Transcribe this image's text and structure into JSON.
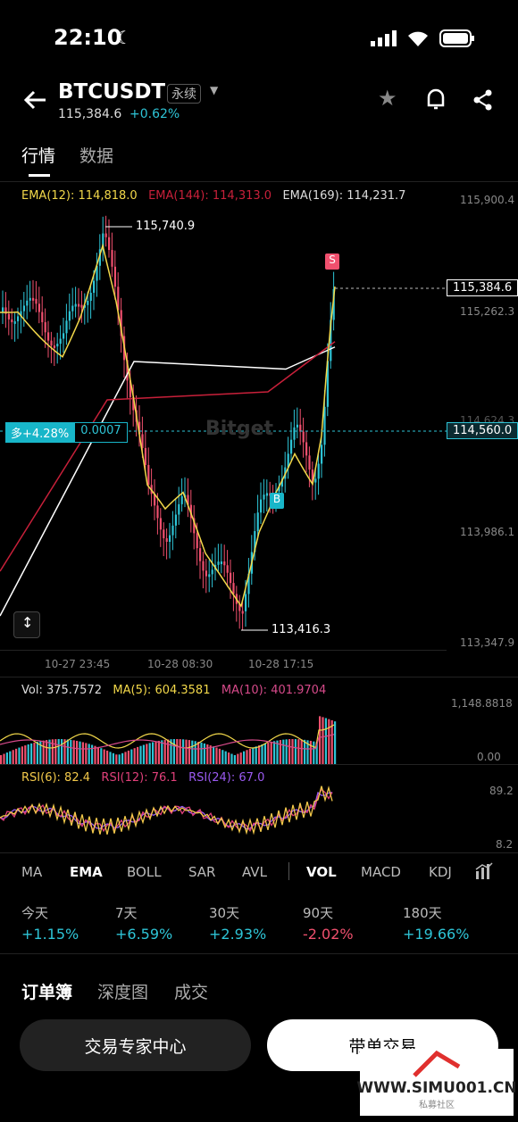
{
  "status_bar": {
    "time": "22:10"
  },
  "header": {
    "pair": "BTCUSDT",
    "contract_type": "永续",
    "price": "115,384.6",
    "change_pct": "+0.62%"
  },
  "tabs": [
    {
      "label": "行情"
    },
    {
      "label": "数据"
    }
  ],
  "ema_legend": {
    "ema12": "EMA(12): 114,818.0",
    "ema144": "EMA(144): 114,313.0",
    "ema169": "EMA(169): 114,231.7",
    "color12": "#f2d84a",
    "color144": "#c8203a",
    "color169": "#ffffff"
  },
  "price_axis": [
    "115,900.4",
    "115,262.3",
    "114,624.3",
    "113,986.1",
    "113,347.9"
  ],
  "current_price_tag": "115,384.6",
  "position_price_tag": "114,560.0",
  "position": {
    "side_pct": "多+4.28%",
    "qty": "0.0007"
  },
  "high_label": "115,740.9",
  "low_label": "113,416.3",
  "markers": {
    "sell": "S",
    "buy": "B"
  },
  "time_axis": [
    "10-27 23:45",
    "10-28 08:30",
    "10-28 17:15"
  ],
  "watermark_brand": "Bitget",
  "vol_legend": {
    "vol": "Vol: 375.7572",
    "ma5": "MA(5): 604.3581",
    "ma10": "MA(10): 401.9704",
    "axis_top": "1,148.8818",
    "axis_bottom": "0.00"
  },
  "rsi_legend": {
    "rsi6": "RSI(6): 82.4",
    "rsi12": "RSI(12): 76.1",
    "rsi24": "RSI(24): 67.0",
    "axis_top": "89.2",
    "axis_bottom": "8.2"
  },
  "indicator_tabs": [
    "MA",
    "EMA",
    "BOLL",
    "SAR",
    "AVL",
    "VOL",
    "MACD",
    "KDJ"
  ],
  "periods": [
    {
      "label": "今天",
      "value": "+1.15%",
      "color": "#2ec4d6"
    },
    {
      "label": "7天",
      "value": "+6.59%",
      "color": "#2ec4d6"
    },
    {
      "label": "30天",
      "value": "+2.93%",
      "color": "#2ec4d6"
    },
    {
      "label": "90天",
      "value": "-2.02%",
      "color": "#f0506e"
    },
    {
      "label": "180天",
      "value": "+19.66%",
      "color": "#2ec4d6"
    }
  ],
  "bottom_tabs": [
    "订单簿",
    "深度图",
    "成交"
  ],
  "buttons": {
    "expert": "交易专家中心",
    "copy": "带单交易"
  },
  "site_watermark": {
    "domain": "WWW.SIMU001.CN",
    "sub": "私募社区"
  },
  "colors": {
    "up": "#2ec4d6",
    "down": "#f0506e",
    "accent": "#18b6c9"
  }
}
